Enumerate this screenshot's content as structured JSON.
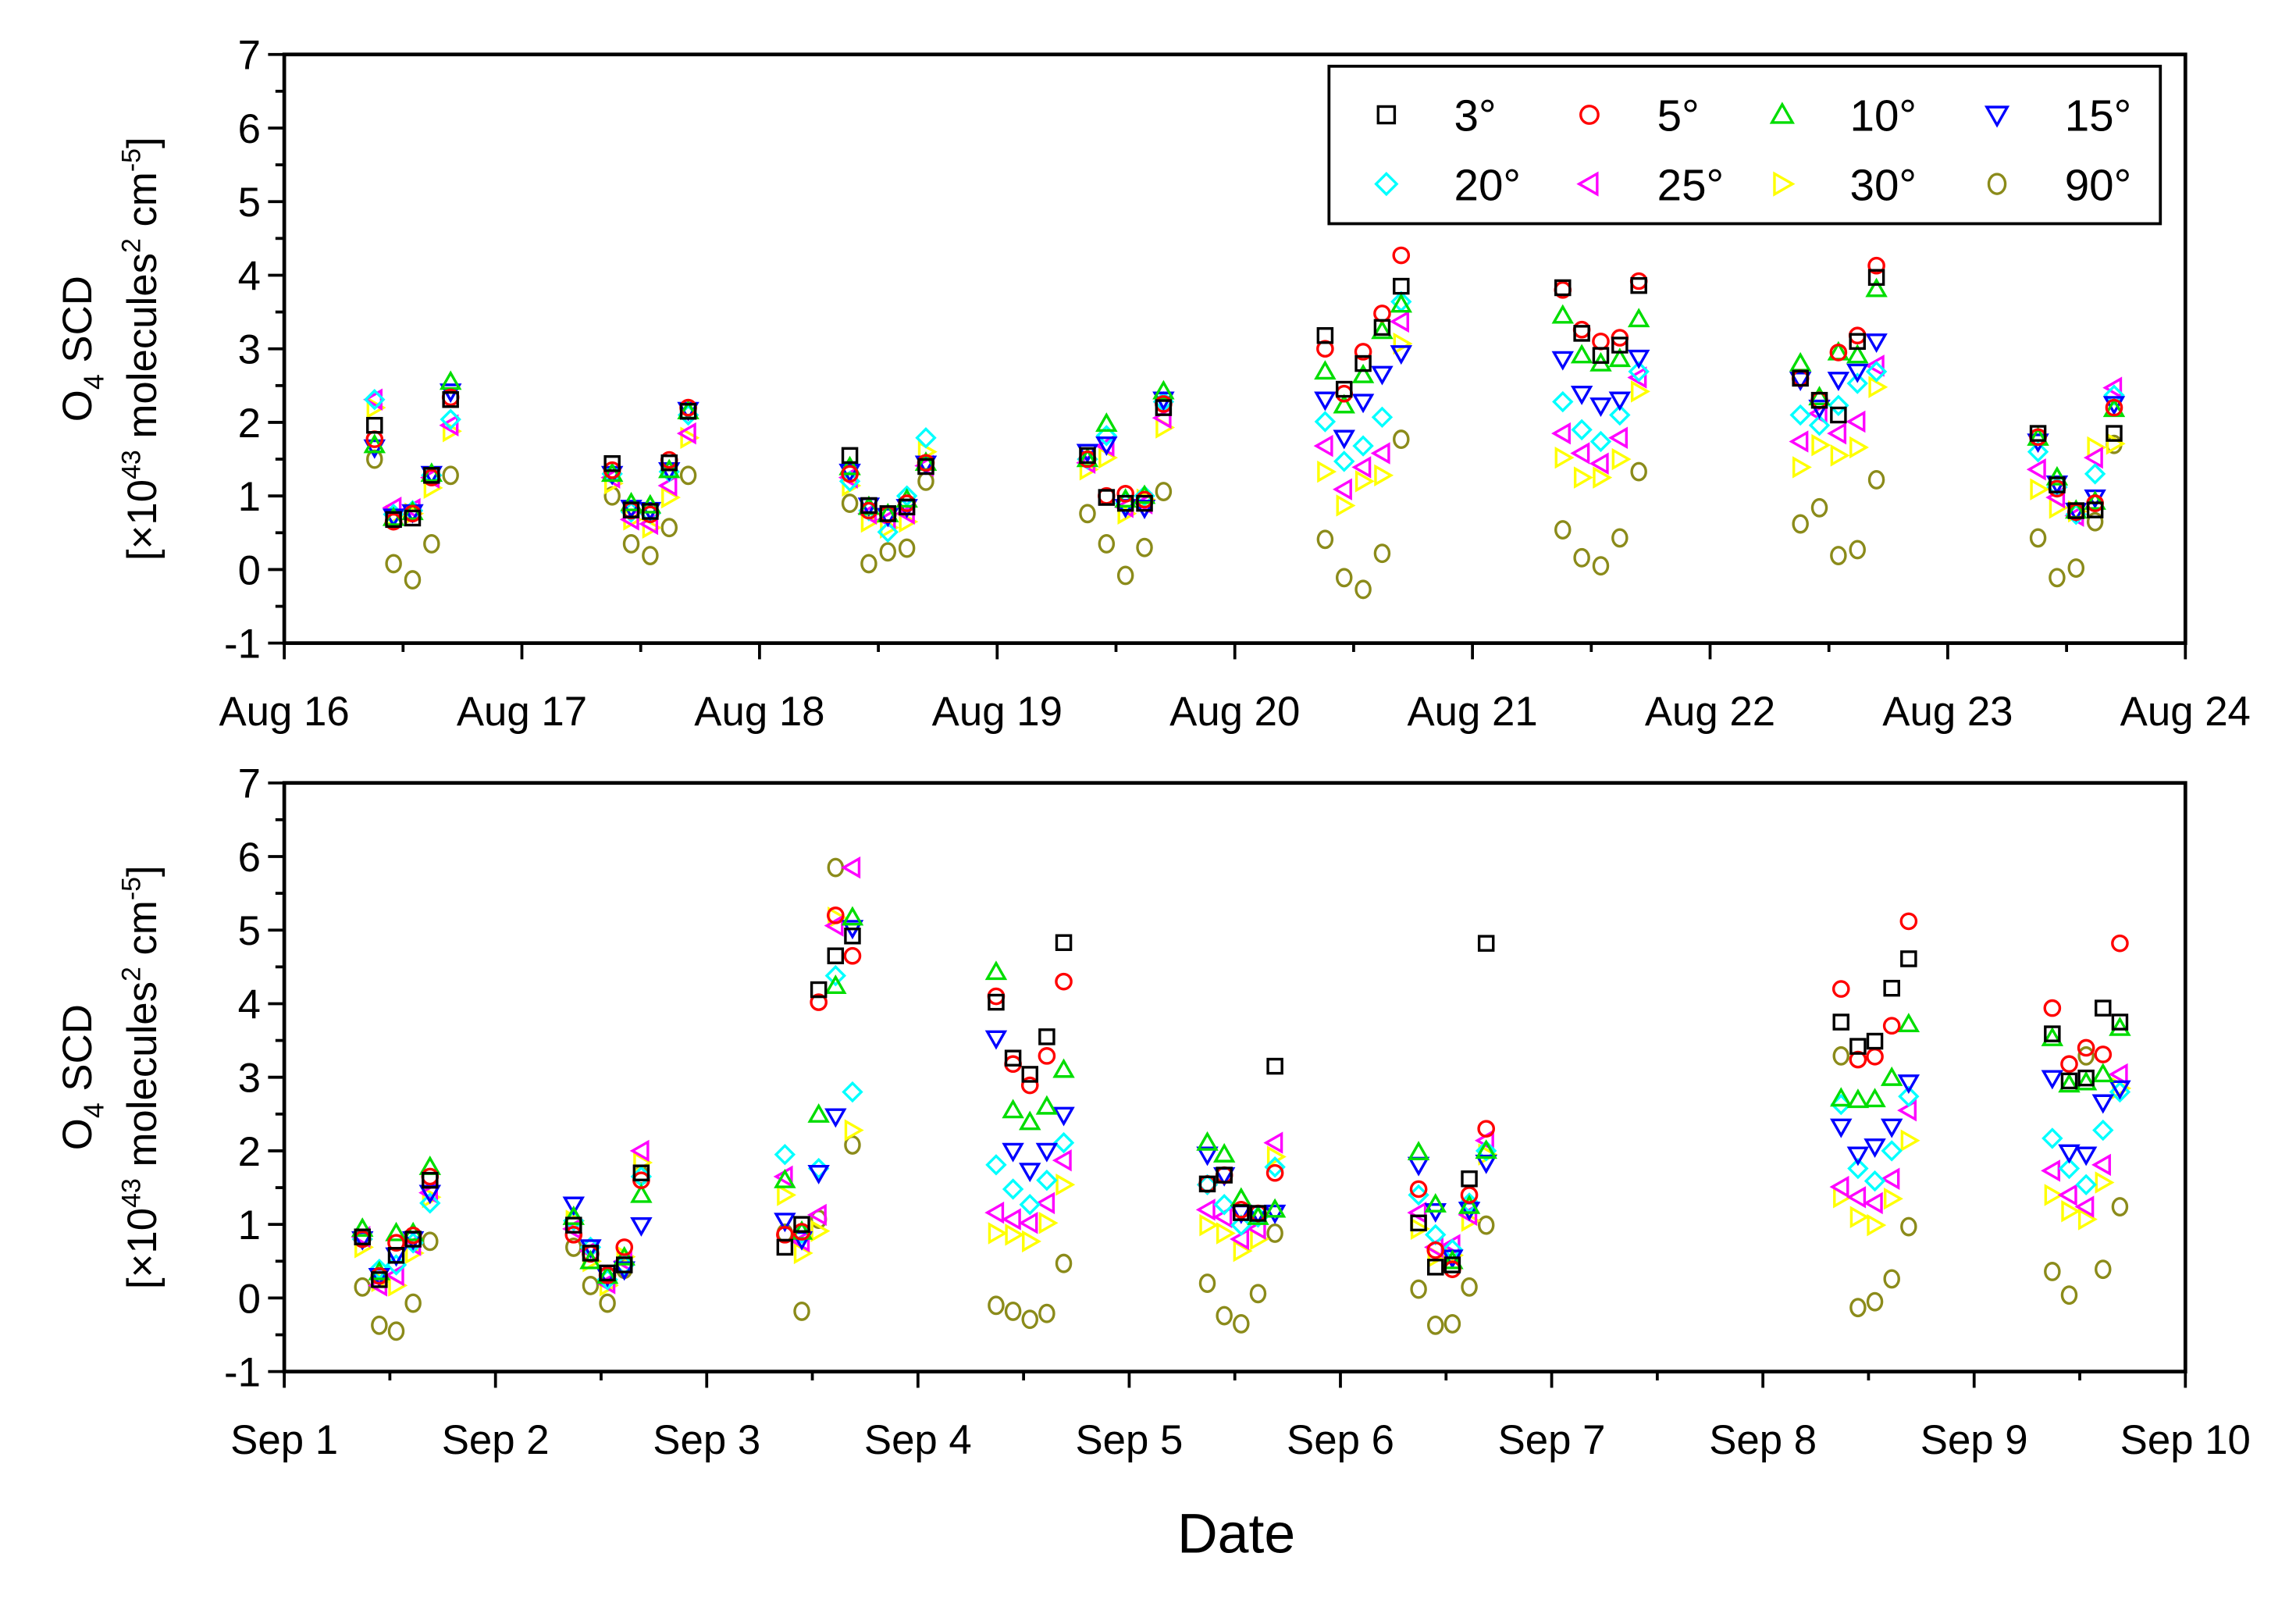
{
  "xlabel": "Date",
  "ylabel": {
    "line1": [
      "O",
      "4",
      " SCD"
    ],
    "line2": [
      "[×10",
      "43",
      " molecules",
      "2",
      " cm",
      "-5",
      "]"
    ]
  },
  "legend": [
    {
      "label": "3°",
      "marker": "square",
      "color": "#000000"
    },
    {
      "label": "5°",
      "marker": "circle",
      "color": "#ff0000"
    },
    {
      "label": "10°",
      "marker": "triangle-up",
      "color": "#00dd00"
    },
    {
      "label": "15°",
      "marker": "triangle-down",
      "color": "#0000ff"
    },
    {
      "label": "20°",
      "marker": "diamond",
      "color": "#00ffff"
    },
    {
      "label": "25°",
      "marker": "triangle-left",
      "color": "#ff00ff"
    },
    {
      "label": "30°",
      "marker": "triangle-right",
      "color": "#ffff00"
    },
    {
      "label": "90°",
      "marker": "hexagon",
      "color": "#8b8b1a"
    }
  ],
  "chart_data": [
    {
      "type": "scatter",
      "title": "",
      "xlabel": "",
      "ylabel": "O4 SCD [×10^43 molecules^2 cm^-5]",
      "ylim": [
        -1,
        7
      ],
      "yticks": [
        "-1",
        "0",
        "1",
        "2",
        "3",
        "4",
        "5",
        "6",
        "7"
      ],
      "xlim": [
        0,
        8
      ],
      "xtick_labels": [
        "Aug 16",
        "Aug 17",
        "Aug 18",
        "Aug 19",
        "Aug 20",
        "Aug 21",
        "Aug 22",
        "Aug 23",
        "Aug 24"
      ],
      "legend_position": "top-right",
      "x": [
        0.38,
        0.46,
        0.54,
        0.62,
        0.7,
        1.38,
        1.46,
        1.54,
        1.62,
        1.7,
        2.38,
        2.46,
        2.54,
        2.62,
        2.7,
        3.38,
        3.46,
        3.54,
        3.62,
        3.7,
        4.38,
        4.46,
        4.54,
        4.62,
        4.7,
        5.38,
        5.46,
        5.54,
        5.62,
        5.7,
        6.38,
        6.46,
        6.54,
        6.62,
        6.7,
        7.38,
        7.46,
        7.54,
        7.62,
        7.7
      ],
      "series": [
        {
          "name": "3°",
          "values": [
            1.96,
            0.68,
            0.7,
            1.28,
            2.31,
            1.44,
            0.81,
            0.79,
            1.45,
            2.15,
            1.55,
            0.87,
            0.76,
            0.85,
            1.4,
            1.55,
            0.98,
            0.9,
            0.9,
            2.2,
            3.18,
            2.45,
            2.8,
            3.29,
            3.85,
            3.83,
            3.21,
            2.91,
            3.05,
            3.86,
            2.6,
            2.3,
            2.1,
            3.1,
            3.97,
            1.85,
            1.15,
            0.8,
            0.81,
            1.85
          ]
        },
        {
          "name": "5°",
          "values": [
            1.77,
            0.65,
            0.76,
            1.25,
            2.34,
            1.35,
            0.8,
            0.75,
            1.49,
            2.2,
            1.3,
            0.8,
            0.75,
            0.9,
            1.45,
            1.5,
            1.0,
            1.03,
            0.95,
            2.25,
            3.0,
            2.39,
            2.96,
            3.48,
            4.27,
            3.8,
            3.26,
            3.1,
            3.15,
            3.92,
            2.6,
            2.3,
            2.95,
            3.18,
            4.13,
            1.8,
            1.1,
            0.78,
            0.9,
            2.2
          ]
        },
        {
          "name": "10°",
          "values": [
            1.69,
            0.7,
            0.78,
            1.3,
            2.55,
            1.3,
            0.9,
            0.87,
            1.35,
            2.15,
            1.39,
            0.85,
            0.75,
            0.95,
            1.45,
            1.5,
            1.98,
            0.95,
            1.0,
            2.42,
            2.69,
            2.23,
            2.64,
            3.24,
            3.6,
            3.45,
            2.91,
            2.8,
            2.86,
            3.4,
            2.8,
            2.34,
            2.95,
            2.91,
            3.81,
            1.79,
            1.25,
            0.8,
            0.92,
            2.18
          ]
        },
        {
          "name": "15°",
          "values": [
            1.66,
            0.72,
            0.78,
            1.3,
            2.42,
            1.3,
            0.84,
            0.81,
            1.35,
            2.17,
            1.33,
            0.87,
            0.73,
            0.85,
            1.44,
            1.6,
            1.7,
            0.85,
            0.84,
            2.31,
            2.31,
            1.79,
            2.28,
            2.66,
            2.94,
            2.86,
            2.39,
            2.23,
            2.31,
            2.88,
            2.58,
            2.2,
            2.58,
            2.69,
            3.1,
            1.74,
            1.17,
            0.8,
            0.98,
            2.25
          ]
        },
        {
          "name": "20°",
          "values": [
            2.31,
            0.75,
            0.8,
            1.28,
            2.04,
            1.3,
            0.78,
            0.76,
            1.33,
            2.1,
            1.2,
            0.8,
            0.51,
            1.0,
            1.79,
            1.5,
            1.82,
            0.9,
            1.0,
            2.28,
            2.01,
            1.47,
            1.68,
            2.07,
            3.64,
            2.28,
            1.9,
            1.74,
            2.1,
            2.69,
            2.1,
            1.96,
            2.23,
            2.53,
            2.69,
            1.6,
            1.12,
            0.75,
            1.3,
            2.37
          ]
        },
        {
          "name": "25°",
          "values": [
            2.31,
            0.84,
            0.82,
            1.25,
            1.96,
            1.25,
            0.68,
            0.62,
            1.14,
            1.85,
            1.25,
            0.76,
            0.68,
            0.76,
            1.41,
            1.45,
            1.68,
            0.85,
            0.9,
            2.06,
            1.68,
            1.09,
            1.39,
            1.58,
            3.37,
            1.85,
            1.58,
            1.44,
            1.79,
            2.61,
            1.74,
            2.12,
            1.85,
            2.01,
            2.77,
            1.36,
            0.98,
            0.73,
            1.52,
            2.47
          ]
        },
        {
          "name": "30°",
          "values": [
            2.2,
            0.73,
            0.76,
            1.11,
            1.88,
            1.17,
            0.68,
            0.57,
            0.98,
            1.79,
            1.14,
            0.65,
            0.57,
            0.65,
            1.6,
            1.36,
            1.52,
            0.76,
            0.95,
            1.93,
            1.33,
            0.87,
            1.2,
            1.28,
            3.07,
            1.52,
            1.25,
            1.25,
            1.5,
            2.42,
            1.39,
            1.69,
            1.55,
            1.66,
            2.48,
            1.09,
            0.84,
            0.79,
            1.66,
            1.71
          ]
        },
        {
          "name": "90°",
          "values": [
            1.5,
            0.08,
            -0.14,
            0.35,
            1.28,
            1.0,
            0.35,
            0.19,
            0.57,
            1.28,
            0.9,
            0.08,
            0.24,
            0.29,
            1.2,
            0.76,
            0.35,
            -0.08,
            0.3,
            1.06,
            0.41,
            -0.11,
            -0.27,
            0.22,
            1.77,
            0.54,
            0.16,
            0.05,
            0.43,
            1.33,
            0.62,
            0.84,
            0.19,
            0.27,
            1.22,
            0.43,
            -0.11,
            0.02,
            0.65,
            1.7
          ]
        }
      ]
    },
    {
      "type": "scatter",
      "title": "",
      "xlabel": "Date",
      "ylabel": "O4 SCD [×10^43 molecules^2 cm^-5]",
      "ylim": [
        -1,
        7
      ],
      "yticks": [
        "-1",
        "0",
        "1",
        "2",
        "3",
        "4",
        "5",
        "6",
        "7"
      ],
      "xlim": [
        0,
        9
      ],
      "xtick_labels": [
        "Sep 1",
        "Sep 2",
        "Sep 3",
        "Sep 4",
        "Sep 5",
        "Sep 6",
        "Sep 7",
        "Sep 8",
        "Sep 9",
        "Sep 10"
      ],
      "x": [
        0.37,
        0.45,
        0.53,
        0.61,
        0.69,
        1.37,
        1.45,
        1.53,
        1.61,
        1.69,
        2.37,
        2.45,
        2.53,
        2.61,
        2.69,
        3.37,
        3.45,
        3.53,
        3.61,
        3.69,
        4.37,
        4.45,
        4.53,
        4.61,
        4.69,
        5.37,
        5.45,
        5.53,
        5.61,
        5.69,
        7.37,
        7.45,
        7.53,
        7.61,
        7.69,
        8.37,
        8.45,
        8.53,
        8.61,
        8.69
      ],
      "series": [
        {
          "name": "3°",
          "values": [
            0.83,
            0.25,
            0.58,
            0.8,
            1.6,
            0.99,
            0.61,
            0.34,
            0.45,
            1.7,
            0.69,
            1.0,
            4.19,
            4.65,
            4.92,
            4.02,
            3.26,
            3.04,
            3.55,
            4.83,
            1.55,
            1.67,
            1.16,
            1.15,
            3.15,
            1.02,
            0.42,
            0.45,
            1.62,
            4.82,
            3.75,
            3.42,
            3.49,
            4.21,
            4.61,
            3.59,
            2.95,
            2.99,
            3.94,
            3.75
          ]
        },
        {
          "name": "5°",
          "values": [
            0.8,
            0.3,
            0.75,
            0.85,
            1.65,
            0.86,
            0.6,
            0.31,
            0.69,
            1.6,
            0.86,
            0.9,
            4.02,
            5.2,
            4.65,
            4.1,
            3.18,
            2.89,
            3.29,
            4.3,
            1.55,
            1.67,
            1.2,
            1.15,
            1.7,
            1.48,
            0.65,
            0.39,
            1.4,
            2.3,
            4.2,
            3.24,
            3.28,
            3.7,
            5.12,
            3.94,
            3.18,
            3.4,
            3.31,
            4.82
          ]
        },
        {
          "name": "10°",
          "values": [
            0.94,
            0.35,
            0.88,
            0.88,
            1.78,
            1.1,
            0.5,
            0.3,
            0.55,
            1.4,
            1.6,
            0.9,
            2.49,
            4.24,
            5.17,
            4.43,
            2.55,
            2.39,
            2.6,
            3.1,
            2.11,
            1.95,
            1.35,
            1.1,
            1.2,
            1.98,
            1.27,
            0.5,
            1.25,
            2.0,
            2.71,
            2.69,
            2.7,
            2.99,
            3.72,
            3.53,
            2.9,
            2.93,
            3.04,
            3.67
          ]
        },
        {
          "name": "15°",
          "values": [
            0.8,
            0.3,
            0.58,
            0.8,
            1.43,
            1.27,
            0.69,
            0.3,
            0.39,
            0.99,
            1.05,
            0.8,
            1.7,
            2.47,
            5.03,
            3.53,
            2.0,
            1.73,
            2.0,
            2.49,
            1.95,
            1.67,
            1.16,
            1.15,
            1.16,
            1.81,
            1.18,
            0.55,
            1.2,
            1.84,
            2.33,
            1.95,
            2.06,
            2.33,
            2.93,
            2.99,
            1.98,
            1.95,
            2.66,
            2.85
          ]
        },
        {
          "name": "20°",
          "values": [
            0.8,
            0.39,
            0.45,
            0.75,
            1.29,
            1.05,
            0.69,
            0.25,
            0.45,
            1.65,
            1.95,
            0.88,
            1.76,
            4.38,
            2.8,
            1.81,
            1.48,
            1.27,
            1.6,
            2.11,
            1.54,
            1.27,
            0.99,
            1.1,
            1.78,
            1.4,
            0.86,
            0.66,
            1.29,
            2.0,
            2.63,
            1.76,
            1.59,
            2.0,
            2.74,
            2.17,
            1.76,
            1.54,
            2.28,
            2.8
          ]
        },
        {
          "name": "25°",
          "values": [
            0.83,
            0.17,
            0.31,
            0.72,
            1.43,
            0.94,
            0.64,
            0.2,
            0.5,
            2.0,
            1.65,
            0.77,
            1.13,
            5.06,
            5.85,
            1.16,
            1.07,
            1.02,
            1.29,
            1.87,
            1.2,
            1.1,
            0.8,
            0.94,
            2.11,
            1.16,
            0.69,
            0.72,
            1.13,
            2.14,
            1.51,
            1.37,
            1.29,
            1.62,
            2.55,
            1.73,
            1.4,
            1.24,
            1.81,
            3.04
          ]
        },
        {
          "name": "30°",
          "values": [
            0.69,
            0.23,
            0.17,
            0.61,
            1.37,
            1.05,
            0.5,
            0.17,
            0.56,
            1.84,
            1.4,
            0.61,
            0.91,
            5.17,
            2.28,
            0.88,
            0.86,
            0.77,
            1.02,
            1.54,
            0.99,
            0.88,
            0.64,
            0.8,
            1.92,
            0.94,
            0.56,
            0.58,
            1.05,
            1.95,
            1.37,
            1.1,
            0.99,
            1.35,
            2.14,
            1.4,
            1.18,
            1.07,
            1.57,
            2.85
          ]
        },
        {
          "name": "90°",
          "values": [
            0.15,
            -0.37,
            -0.45,
            -0.07,
            0.77,
            0.69,
            0.17,
            -0.07,
            0.39,
            1.67,
            0.88,
            -0.18,
            1.07,
            5.85,
            2.08,
            -0.1,
            -0.18,
            -0.29,
            -0.21,
            0.47,
            0.2,
            -0.24,
            -0.35,
            0.06,
            0.88,
            0.12,
            -0.37,
            -0.35,
            0.15,
            0.99,
            3.29,
            -0.13,
            -0.05,
            0.26,
            0.97,
            0.36,
            0.04,
            3.29,
            0.39,
            1.24
          ]
        }
      ]
    }
  ]
}
